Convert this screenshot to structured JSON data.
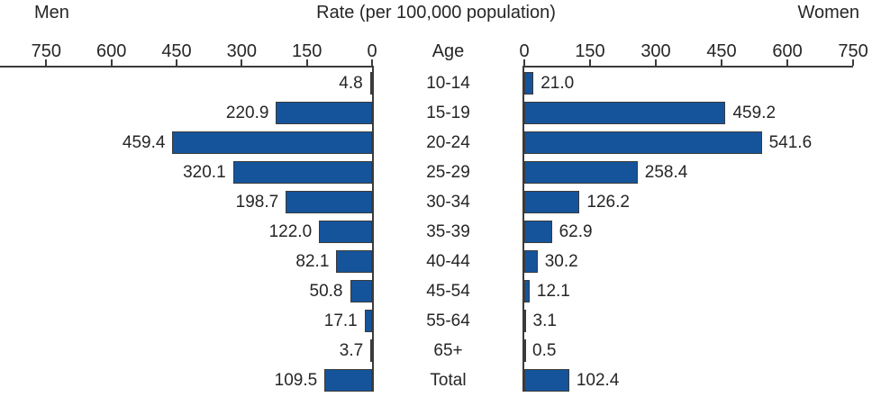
{
  "header": {
    "men": "Men",
    "title": "Rate (per 100,000 population)",
    "women": "Women",
    "age": "Age"
  },
  "chart_data": {
    "type": "bar",
    "orientation": "horizontal-diverging",
    "title": "Rate (per 100,000 population)",
    "categories": [
      "10-14",
      "15-19",
      "20-24",
      "25-29",
      "30-34",
      "35-39",
      "40-44",
      "45-54",
      "55-64",
      "65+",
      "Total"
    ],
    "series": [
      {
        "name": "Men",
        "side": "left",
        "values": [
          4.8,
          220.9,
          459.4,
          320.1,
          198.7,
          122.0,
          82.1,
          50.8,
          17.1,
          3.7,
          109.5
        ]
      },
      {
        "name": "Women",
        "side": "right",
        "values": [
          21.0,
          459.2,
          541.6,
          258.4,
          126.2,
          62.9,
          30.2,
          12.1,
          3.1,
          0.5,
          102.4
        ]
      }
    ],
    "axis": {
      "ticks_left": [
        750,
        600,
        450,
        300,
        150,
        0
      ],
      "ticks_right": [
        0,
        150,
        300,
        450,
        600,
        750
      ],
      "max": 750,
      "grid": false
    },
    "colors": {
      "bar_fill": "#15549b",
      "bar_border": "#3b3b3b",
      "axis": "#3b3b3b",
      "text": "#262626"
    }
  }
}
